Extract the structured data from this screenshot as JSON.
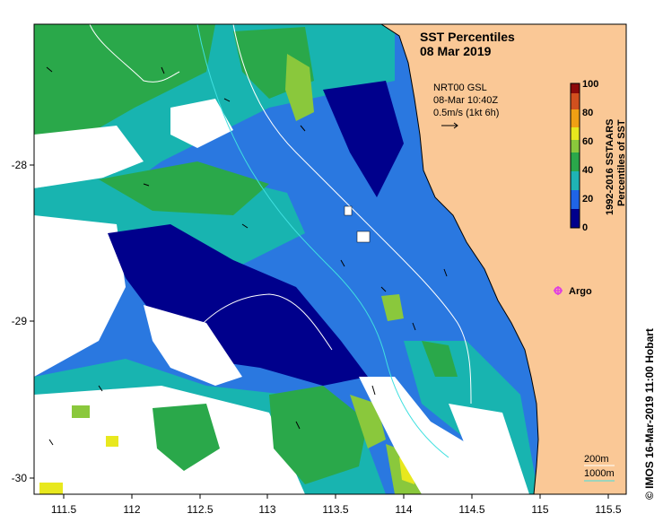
{
  "map": {
    "title_line1": "SST Percentiles",
    "title_line2": "08 Mar 2019",
    "current_info": {
      "line1": "NRT00 GSL",
      "line2": "08-Mar 10:40Z",
      "line3": "0.5m/s (1kt 6h)"
    },
    "colorbar": {
      "title_line1": "1992-2016  SSTAARS",
      "title_line2": "Percentiles of SST",
      "ticks": [
        "0",
        "20",
        "40",
        "60",
        "80",
        "100"
      ],
      "colors": [
        "#00008c",
        "#1f64e6",
        "#1fb4b4",
        "#2aa84a",
        "#8ac83c",
        "#e8e81e",
        "#f0a014",
        "#d2501e",
        "#8c0a0a"
      ]
    },
    "x_ticks": [
      "111.5",
      "112",
      "112.5",
      "113",
      "113.5",
      "114",
      "114.5",
      "115",
      "115.5"
    ],
    "y_ticks": [
      "-28",
      "-29",
      "-30"
    ],
    "argo_label": "Argo",
    "contour_legend": {
      "label1": "200m",
      "label2": "1000m"
    },
    "credit": "©  IMOS 16-Mar-2019 11:00 Hobart",
    "colors": {
      "land": "#fac896",
      "argo": "#e040e0",
      "contour": "#40e0e0"
    }
  }
}
